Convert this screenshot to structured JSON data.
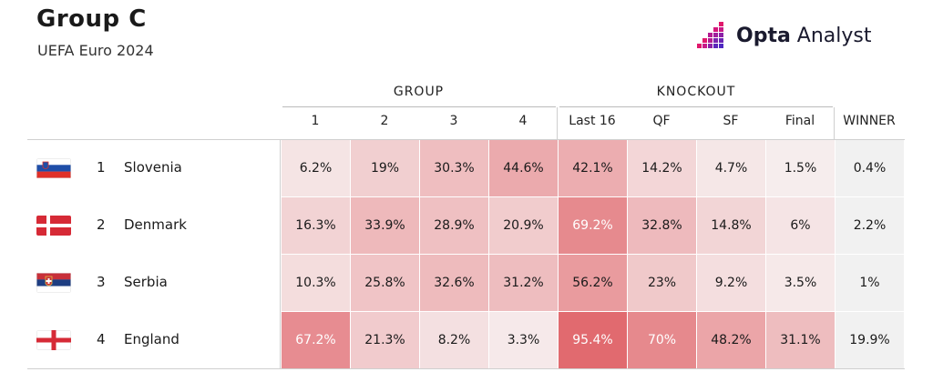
{
  "header": {
    "title": "Group C",
    "subtitle": "UEFA Euro 2024",
    "logo_brand": "Opta",
    "logo_product": " Analyst"
  },
  "column_groups": [
    {
      "label": "GROUP"
    },
    {
      "label": "KNOCKOUT"
    }
  ],
  "columns": [
    "1",
    "2",
    "3",
    "4",
    "Last 16",
    "QF",
    "SF",
    "Final",
    "WINNER"
  ],
  "teams": [
    {
      "rank": "1",
      "name": "Slovenia",
      "flag_icon": "slovenia-flag-icon"
    },
    {
      "rank": "2",
      "name": "Denmark",
      "flag_icon": "denmark-flag-icon"
    },
    {
      "rank": "3",
      "name": "Serbia",
      "flag_icon": "serbia-flag-icon"
    },
    {
      "rank": "4",
      "name": "England",
      "flag_icon": "england-flag-icon"
    }
  ],
  "chart_data": {
    "type": "table",
    "row_labels": [
      "Slovenia",
      "Denmark",
      "Serbia",
      "England"
    ],
    "column_labels": [
      "1",
      "2",
      "3",
      "4",
      "Last 16",
      "QF",
      "SF",
      "Final",
      "WINNER"
    ],
    "values": [
      [
        6.2,
        19,
        30.3,
        44.6,
        42.1,
        14.2,
        4.7,
        1.5,
        0.4
      ],
      [
        16.3,
        33.9,
        28.9,
        20.9,
        69.2,
        32.8,
        14.8,
        6,
        2.2
      ],
      [
        10.3,
        25.8,
        32.6,
        31.2,
        56.2,
        23,
        9.2,
        3.5,
        1
      ],
      [
        67.2,
        21.3,
        8.2,
        3.3,
        95.4,
        70,
        48.2,
        31.1,
        19.9
      ]
    ],
    "display": [
      [
        "6.2%",
        "19%",
        "30.3%",
        "44.6%",
        "42.1%",
        "14.2%",
        "4.7%",
        "1.5%",
        "0.4%"
      ],
      [
        "16.3%",
        "33.9%",
        "28.9%",
        "20.9%",
        "69.2%",
        "32.8%",
        "14.8%",
        "6%",
        "2.2%"
      ],
      [
        "10.3%",
        "25.8%",
        "32.6%",
        "31.2%",
        "56.2%",
        "23%",
        "9.2%",
        "3.5%",
        "1%"
      ],
      [
        "67.2%",
        "21.3%",
        "8.2%",
        "3.3%",
        "95.4%",
        "70%",
        "48.2%",
        "31.1%",
        "19.9%"
      ]
    ],
    "white_text_cells": [
      [
        1,
        4
      ],
      [
        3,
        0
      ],
      [
        3,
        4
      ],
      [
        3,
        5
      ]
    ],
    "color_scale": {
      "low": "#f7f1f1",
      "high": "#e0646a"
    },
    "winner_column_color": "#f1f1f1"
  }
}
